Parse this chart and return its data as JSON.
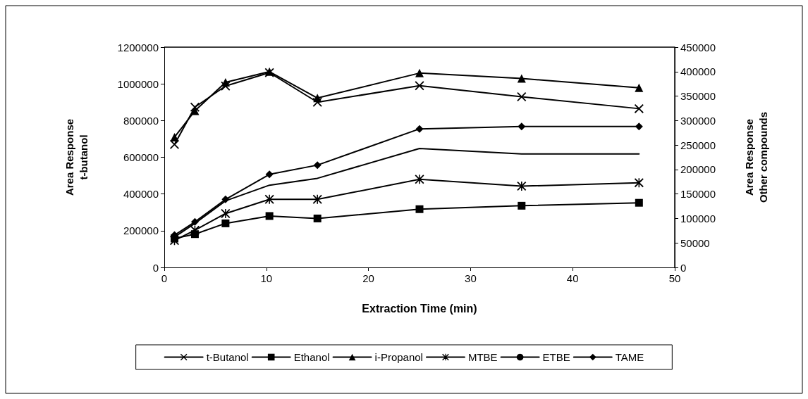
{
  "chart_data": {
    "type": "line",
    "xlabel": "Extraction Time (min)",
    "ylabel": "Area Response\nt-butanol",
    "y2label": "Area Response\nOther compounds",
    "x": [
      1,
      3,
      6,
      10.3,
      15,
      25,
      35,
      46.5
    ],
    "series": [
      {
        "name": "t-Butanol",
        "color": "#000000",
        "marker": "cross",
        "values": [
          670000,
          873000,
          988000,
          1061000,
          900000,
          990000,
          930000,
          865000
        ]
      },
      {
        "name": "Ethanol",
        "color": "#000000",
        "marker": "square",
        "axis": "y2",
        "values": [
          59000,
          68000,
          90000,
          105000,
          100000,
          119000,
          126000,
          132000
        ]
      },
      {
        "name": "i-Propanol",
        "color": "#000000",
        "marker": "triangle",
        "axis": "y2",
        "values": [
          266000,
          320000,
          378000,
          400000,
          346000,
          397000,
          386000,
          367000
        ]
      },
      {
        "name": "MTBE",
        "color": "#000000",
        "marker": "star",
        "axis": "y2",
        "values": [
          55000,
          76000,
          110000,
          139000,
          139000,
          180000,
          166000,
          173000
        ]
      },
      {
        "name": "ETBE",
        "color": "#000000",
        "marker": "none",
        "axis": "y2",
        "values": [
          62000,
          90000,
          136000,
          168000,
          182000,
          243000,
          232000,
          232000
        ]
      },
      {
        "name": "TAME",
        "color": "#000000",
        "marker": "diamond",
        "axis": "y2",
        "values": [
          66000,
          93000,
          139000,
          190000,
          209000,
          283000,
          288000,
          288000
        ]
      }
    ],
    "xlim": [
      0,
      50
    ],
    "xticks": [
      0,
      10,
      20,
      30,
      40,
      50
    ],
    "ylim": [
      0,
      1200000
    ],
    "yticks": [
      0,
      200000,
      400000,
      600000,
      800000,
      1000000,
      1200000
    ],
    "y2lim": [
      0,
      450000
    ],
    "y2ticks": [
      0,
      50000,
      100000,
      150000,
      200000,
      250000,
      300000,
      350000,
      400000,
      450000
    ],
    "grid": false,
    "legend": "bottom",
    "line_style": "solid"
  }
}
